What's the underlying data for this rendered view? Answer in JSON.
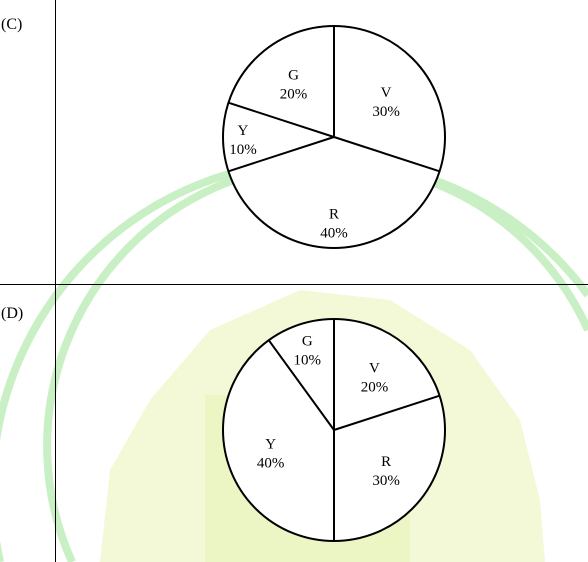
{
  "options": [
    {
      "label": "(C)",
      "chart_data": {
        "type": "pie",
        "start_angle_deg": 0,
        "direction": "clockwise",
        "slices": [
          {
            "name": "V",
            "value": 30,
            "value_label": "30%"
          },
          {
            "name": "R",
            "value": 40,
            "value_label": "40%"
          },
          {
            "name": "Y",
            "value": 10,
            "value_label": "10%"
          },
          {
            "name": "G",
            "value": 20,
            "value_label": "20%"
          }
        ]
      }
    },
    {
      "label": "(D)",
      "chart_data": {
        "type": "pie",
        "start_angle_deg": 0,
        "direction": "clockwise",
        "slices": [
          {
            "name": "V",
            "value": 20,
            "value_label": "20%"
          },
          {
            "name": "R",
            "value": 30,
            "value_label": "30%"
          },
          {
            "name": "Y",
            "value": 40,
            "value_label": "40%"
          },
          {
            "name": "G",
            "value": 10,
            "value_label": "10%"
          }
        ]
      }
    }
  ],
  "colors": {
    "stroke": "#000000",
    "fill": "#ffffff",
    "watermark": "#c9f0c4",
    "watermark_fill": "#f1f8cf"
  }
}
